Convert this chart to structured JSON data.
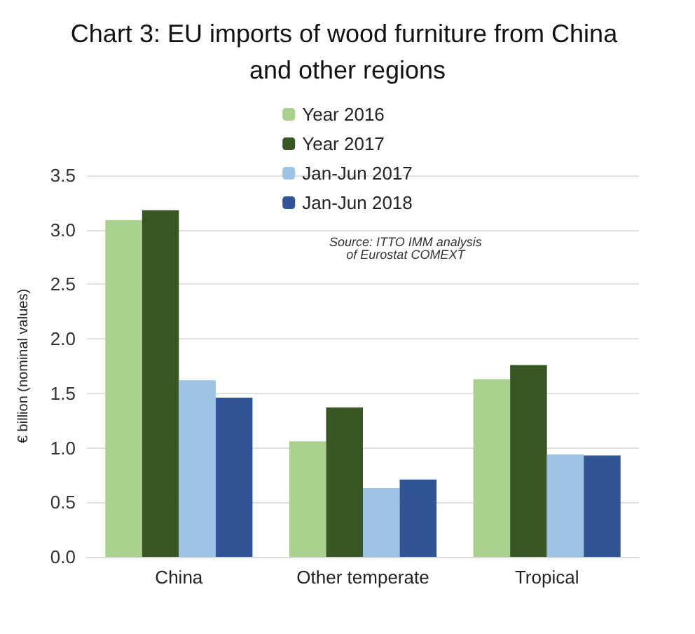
{
  "chart_data": {
    "type": "bar",
    "title": "Chart 3: EU imports of wood furniture from China and other regions",
    "ylabel": "€ billion (nominal values)",
    "categories": [
      "China",
      "Other temperate",
      "Tropical"
    ],
    "series": [
      {
        "name": "Year 2016",
        "color": "#a9d18e",
        "values": [
          3.09,
          1.06,
          1.63
        ]
      },
      {
        "name": "Year 2017",
        "color": "#385723",
        "values": [
          3.18,
          1.37,
          1.76
        ]
      },
      {
        "name": "Jan-Jun 2017",
        "color": "#9dc3e6",
        "values": [
          1.62,
          0.63,
          0.94
        ]
      },
      {
        "name": "Jan-Jun 2018",
        "color": "#2f5597",
        "values": [
          1.46,
          0.71,
          0.93
        ]
      }
    ],
    "ylim": [
      0,
      3.5
    ],
    "yticks": [
      {
        "value": 0,
        "label": "0.0"
      },
      {
        "value": 0.5,
        "label": "0.5"
      },
      {
        "value": 1,
        "label": "1.0"
      },
      {
        "value": 1.5,
        "label": "1.5"
      },
      {
        "value": 2,
        "label": "2.0"
      },
      {
        "value": 2.5,
        "label": "2.5"
      },
      {
        "value": 3,
        "label": "3.0"
      },
      {
        "value": 3.5,
        "label": "3.5"
      }
    ],
    "grid": "y",
    "legend": "top",
    "annotations": [
      "Source: ITTO IMM analysis of Eurostat COMEXT"
    ]
  }
}
